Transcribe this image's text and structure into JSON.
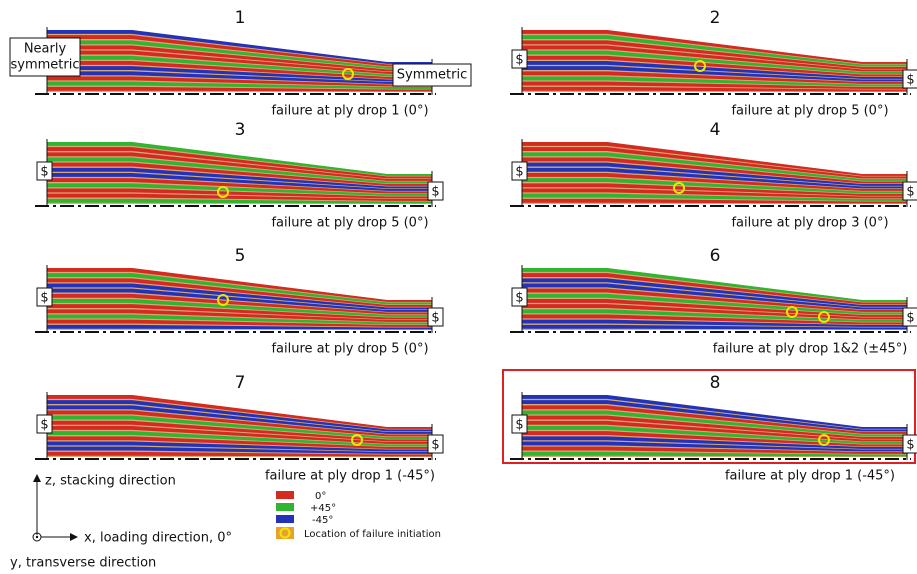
{
  "panels": [
    {
      "number": "1",
      "caption": "failure at ply drop 1 (0°)"
    },
    {
      "number": "2",
      "caption": "failure at ply drop 5 (0°)"
    },
    {
      "number": "3",
      "caption": "failure at ply drop 5 (0°)"
    },
    {
      "number": "4",
      "caption": "failure at ply drop 3 (0°)"
    },
    {
      "number": "5",
      "caption": "failure at ply drop 5 (0°)"
    },
    {
      "number": "6",
      "caption": "failure at ply drop 1&2 (±45°)"
    },
    {
      "number": "7",
      "caption": "failure at ply drop 1 (-45°)"
    },
    {
      "number": "8",
      "caption": "failure at ply drop 1 (-45°)"
    }
  ],
  "boundary_labels": {
    "nearly_symmetric": [
      "Nearly",
      "symmetric"
    ],
    "symmetric": "Symmetric",
    "symbol": "$"
  },
  "axes": {
    "z": "z, stacking direction",
    "x": "x, loading direction, 0°",
    "y": "y, transverse direction"
  },
  "legend": {
    "ply_0": "0°",
    "ply_p45": "+45°",
    "ply_m45": "-45°",
    "failure": "Location of failure initiation"
  }
}
